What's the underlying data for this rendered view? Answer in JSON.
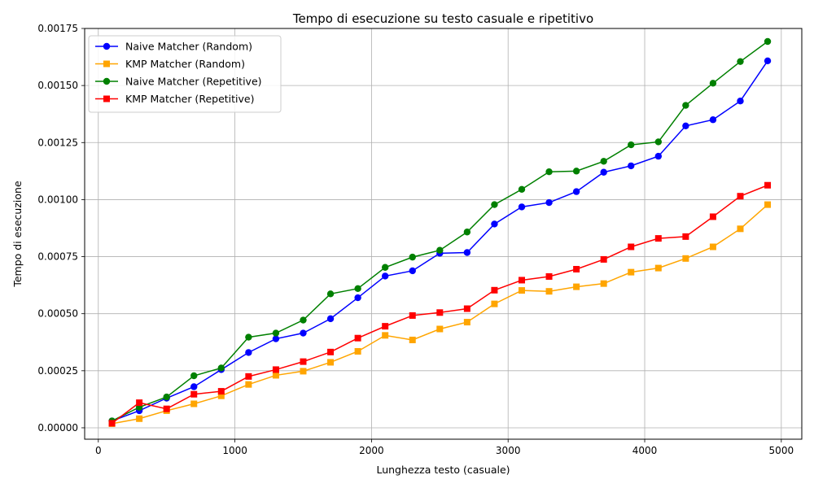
{
  "chart_data": {
    "type": "line",
    "title": "Tempo di esecuzione su testo casuale e ripetitivo",
    "xlabel": "Lunghezza testo (casuale)",
    "ylabel": "Tempo di esecuzione",
    "xlim": [
      -100,
      5150
    ],
    "ylim": [
      -5e-05,
      0.00175
    ],
    "xticks": [
      0,
      1000,
      2000,
      3000,
      4000,
      5000
    ],
    "yticks": [
      0.0,
      0.00025,
      0.0005,
      0.00075,
      0.001,
      0.00125,
      0.0015,
      0.00175
    ],
    "ytick_labels": [
      "0.00000",
      "0.00025",
      "0.00050",
      "0.00075",
      "0.00100",
      "0.00125",
      "0.00150",
      "0.00175"
    ],
    "grid": true,
    "legend_position": "top-left",
    "x": [
      100,
      300,
      500,
      700,
      900,
      1100,
      1300,
      1500,
      1700,
      1900,
      2100,
      2300,
      2500,
      2700,
      2900,
      3100,
      3300,
      3500,
      3700,
      3900,
      4100,
      4300,
      4500,
      4700,
      4900
    ],
    "series": [
      {
        "name": "Naive Matcher (Random)",
        "color": "#0000ff",
        "marker": "circle",
        "values": [
          3e-05,
          7.5e-05,
          0.00013,
          0.00018,
          0.000255,
          0.00033,
          0.00039,
          0.000415,
          0.000478,
          0.00057,
          0.000665,
          0.000688,
          0.000765,
          0.000768,
          0.000893,
          0.000968,
          0.000987,
          0.001035,
          0.00112,
          0.001148,
          0.00119,
          0.001323,
          0.00135,
          0.001432,
          0.001608
        ]
      },
      {
        "name": "KMP Matcher (Random)",
        "color": "#ffa500",
        "marker": "square",
        "values": [
          1.8e-05,
          4e-05,
          7.5e-05,
          0.000105,
          0.00014,
          0.00019,
          0.00023,
          0.000248,
          0.000287,
          0.000335,
          0.000405,
          0.000385,
          0.000433,
          0.000463,
          0.000543,
          0.000602,
          0.000598,
          0.000618,
          0.000632,
          0.000682,
          0.0007,
          0.000742,
          0.000793,
          0.000872,
          0.000978
        ]
      },
      {
        "name": "Naive Matcher (Repetitive)",
        "color": "#008000",
        "marker": "circle",
        "values": [
          3e-05,
          9e-05,
          0.000135,
          0.000228,
          0.000262,
          0.000397,
          0.000415,
          0.000472,
          0.000587,
          0.00061,
          0.000703,
          0.000748,
          0.000778,
          0.000858,
          0.000978,
          0.001045,
          0.001122,
          0.001125,
          0.001168,
          0.00124,
          0.001253,
          0.001413,
          0.00151,
          0.001605,
          0.001693
        ]
      },
      {
        "name": "KMP Matcher (Repetitive)",
        "color": "#ff0000",
        "marker": "square",
        "values": [
          2e-05,
          0.00011,
          8.3e-05,
          0.000147,
          0.00016,
          0.000225,
          0.000255,
          0.00029,
          0.000332,
          0.000393,
          0.000445,
          0.000492,
          0.000505,
          0.000522,
          0.000603,
          0.000647,
          0.000663,
          0.000695,
          0.000738,
          0.000793,
          0.00083,
          0.000838,
          0.000925,
          0.001015,
          0.001063
        ]
      }
    ]
  }
}
